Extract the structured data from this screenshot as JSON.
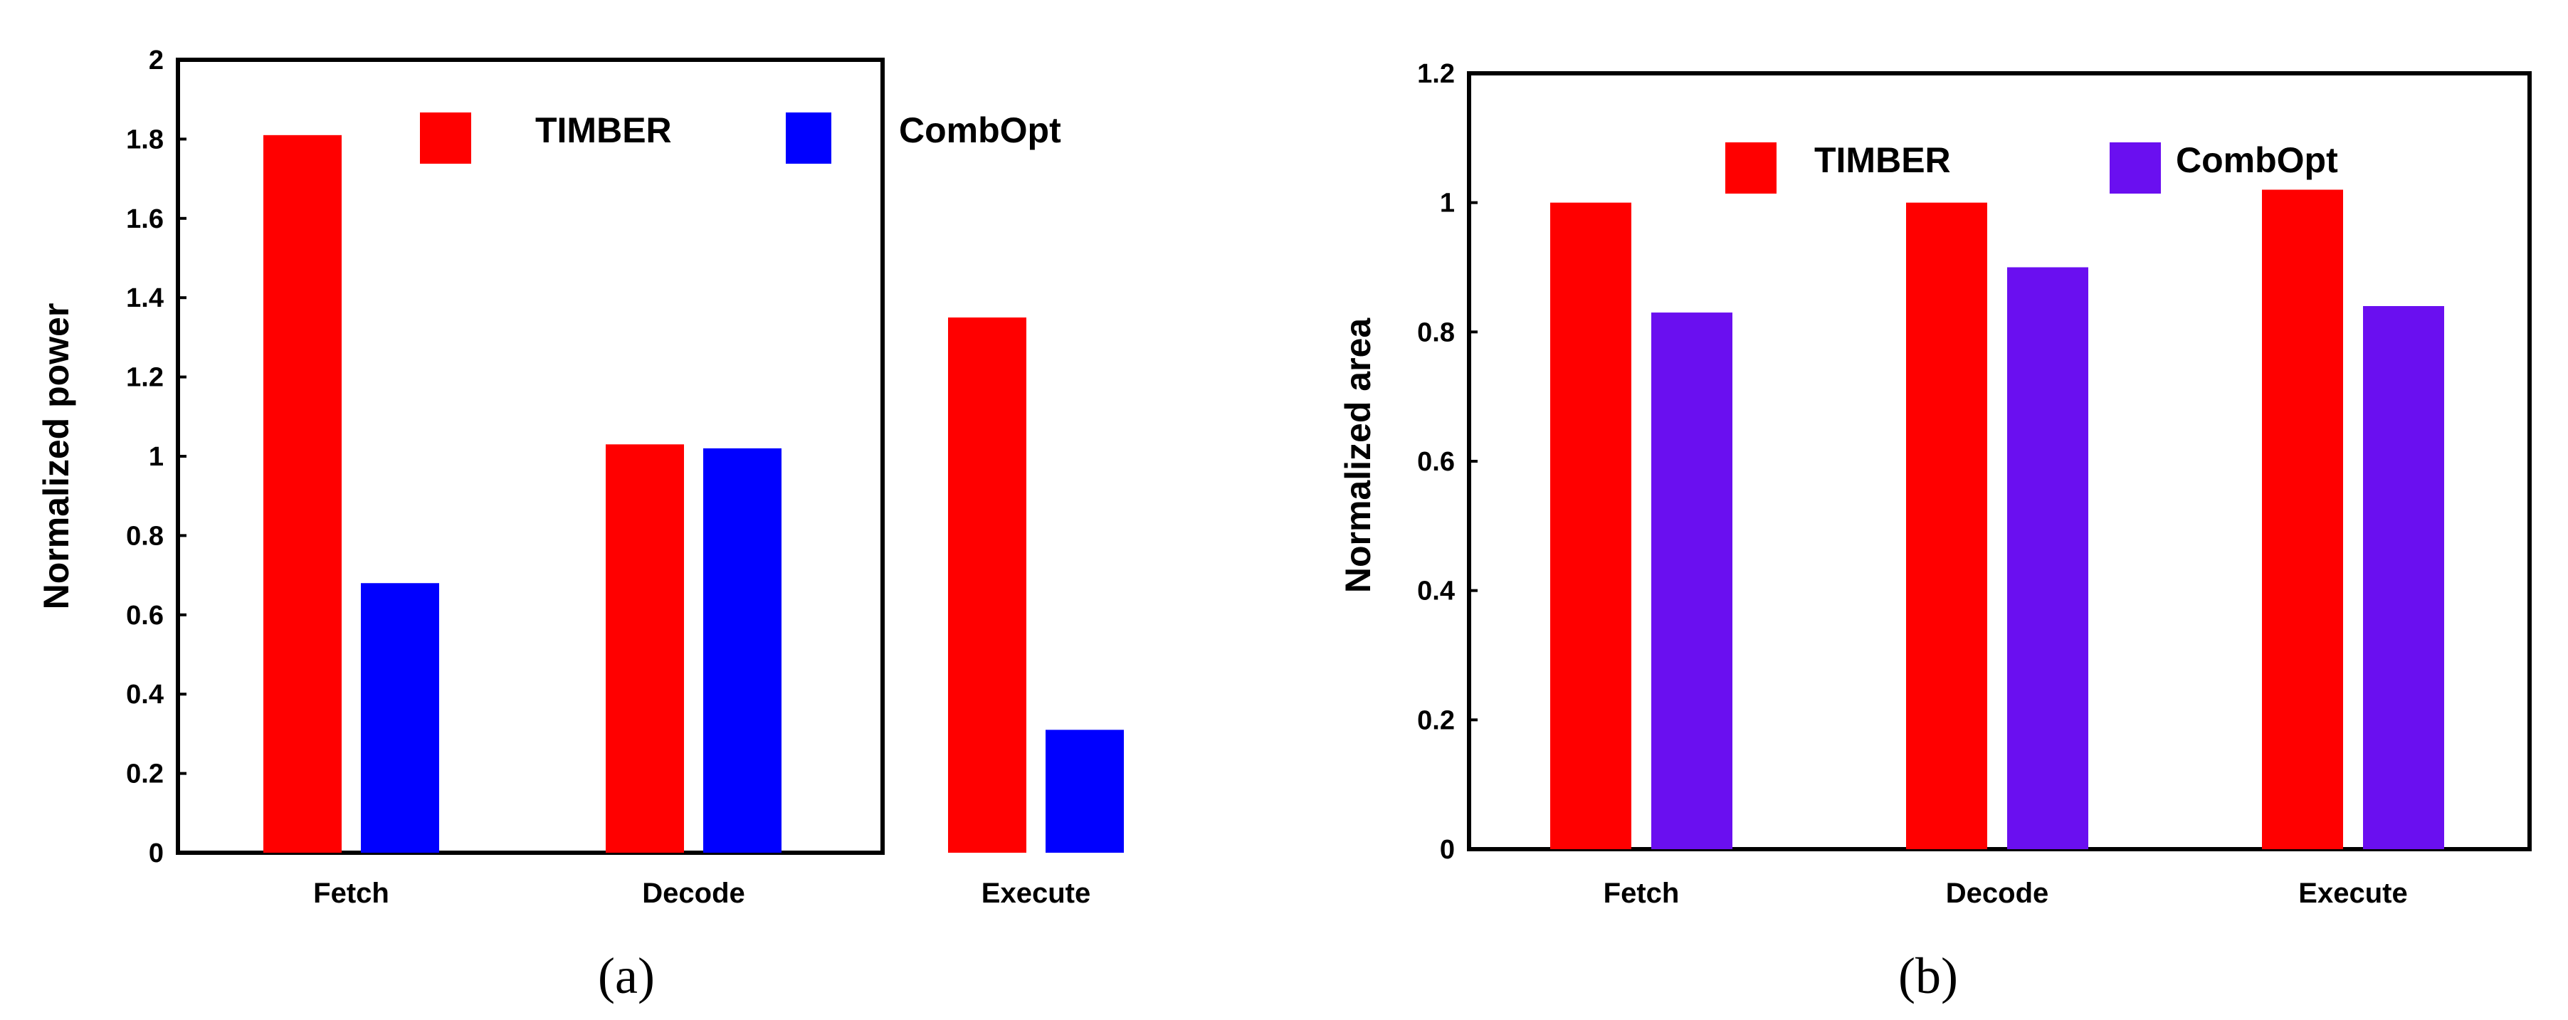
{
  "chart_data": [
    {
      "type": "bar",
      "caption": "(a)",
      "ylabel": "Normalized power",
      "xlabel": "",
      "categories": [
        "Fetch",
        "Decode",
        "Execute"
      ],
      "series": [
        {
          "name": "TIMBER",
          "color": "#ff0000",
          "values": [
            1.81,
            1.03,
            1.35
          ]
        },
        {
          "name": "CombOpt",
          "color": "#0000ff",
          "values": [
            0.68,
            1.02,
            0.31
          ]
        }
      ],
      "ylim": [
        0,
        2
      ],
      "yticks": [
        0,
        0.2,
        0.4,
        0.6,
        0.8,
        1,
        1.2,
        1.4,
        1.6,
        1.8,
        2
      ],
      "ytick_labels": [
        "0",
        "0.2",
        "0.4",
        "0.6",
        "0.8",
        "1",
        "1.2",
        "1.4",
        "1.6",
        "1.8",
        "2"
      ],
      "legend_position": "top-center"
    },
    {
      "type": "bar",
      "caption": "(b)",
      "ylabel": "Normalized area",
      "xlabel": "",
      "categories": [
        "Fetch",
        "Decode",
        "Execute"
      ],
      "series": [
        {
          "name": "TIMBER",
          "color": "#ff0000",
          "values": [
            1.0,
            1.0,
            1.02
          ]
        },
        {
          "name": "CombOpt",
          "color": "#6a0ff0",
          "values": [
            0.83,
            0.9,
            0.84
          ]
        }
      ],
      "ylim": [
        0,
        1.2
      ],
      "yticks": [
        0,
        0.2,
        0.4,
        0.6,
        0.8,
        1,
        1.2
      ],
      "ytick_labels": [
        "0",
        "0.2",
        "0.4",
        "0.6",
        "0.8",
        "1",
        "1.2"
      ],
      "legend_position": "top-center"
    }
  ]
}
